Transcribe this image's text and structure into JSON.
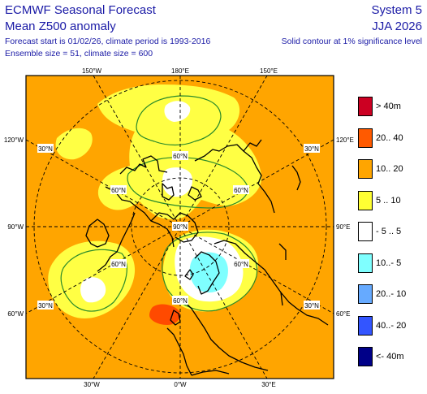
{
  "header": {
    "title": "ECMWF Seasonal Forecast",
    "subtitle": "Mean Z500 anomaly",
    "forecast_info": "Forecast start is 01/02/26, climate period is 1993-2016",
    "ensemble_info": "Ensemble size = 51, climate size = 600",
    "system": "System 5",
    "season": "JJA 2026",
    "significance_note": "Solid contour at 1% significance level"
  },
  "map": {
    "projection": "north-polar-stereographic",
    "top_labels": [
      "150°W",
      "180°E",
      "150°E"
    ],
    "bottom_labels": [
      "30°W",
      "0°W",
      "30°E"
    ],
    "left_labels": [
      "120°W",
      "90°W",
      "60°W"
    ],
    "right_labels": [
      "120°E",
      "90°E",
      "60°E"
    ],
    "lat_labels": {
      "nw_30": "30°N",
      "nw_60": "60°N",
      "n_60": "60°N",
      "ne_60": "60°N",
      "ne_30": "30°N",
      "center": "90°N",
      "w_60": "60°N",
      "e_60": "60°N",
      "sw_30": "30°N",
      "s_60": "60°N",
      "se_30": "30°N"
    },
    "background_class": "10..20",
    "features": [
      "positive-anomaly-5-10-over-north-pacific",
      "positive-anomaly-5-10-over-arctic",
      "near-zero-anomaly-over-scandinavia",
      "negative-anomaly-10-5-over-scandinavia",
      "positive-anomaly-20-40-west-of-iberia"
    ]
  },
  "legend": {
    "items": [
      {
        "label": "> 40m",
        "color": "#cc0022"
      },
      {
        "label": "20.. 40",
        "color": "#ff5a00"
      },
      {
        "label": "10.. 20",
        "color": "#ffa500"
      },
      {
        "label": "5 .. 10",
        "color": "#ffff33"
      },
      {
        "label": "- 5 .. 5",
        "color": "#ffffff"
      },
      {
        "label": "10..- 5",
        "color": "#7fffff"
      },
      {
        "label": "20..- 10",
        "color": "#66aaff"
      },
      {
        "label": "40..- 20",
        "color": "#3355ff"
      },
      {
        "label": "<- 40m",
        "color": "#000088"
      }
    ]
  }
}
